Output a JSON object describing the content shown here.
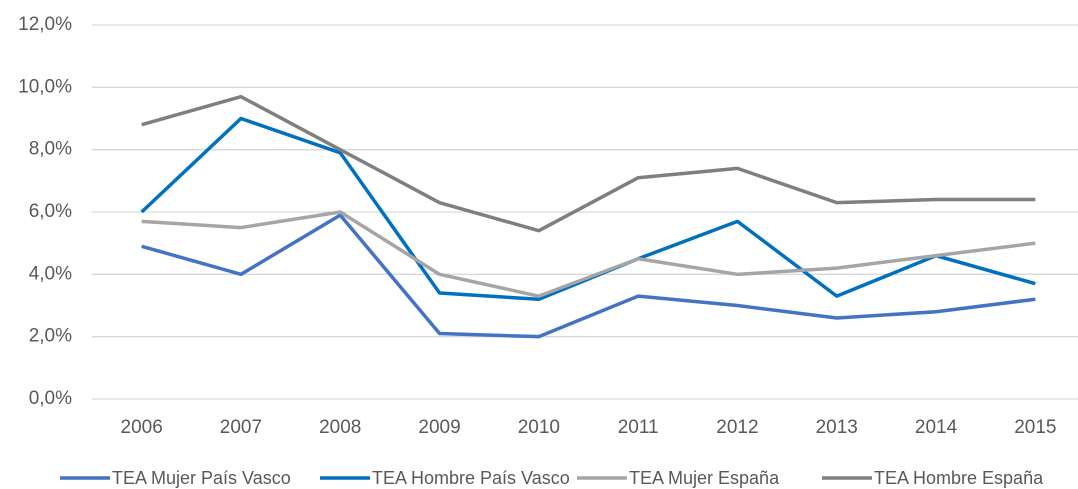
{
  "chart_data": {
    "type": "line",
    "categories": [
      "2006",
      "2007",
      "2008",
      "2009",
      "2010",
      "2011",
      "2012",
      "2013",
      "2014",
      "2015"
    ],
    "series": [
      {
        "name": "TEA Mujer País Vasco",
        "color": "#4472c4",
        "values": [
          4.9,
          4.0,
          5.9,
          2.1,
          2.0,
          3.3,
          3.0,
          2.6,
          2.8,
          3.2
        ]
      },
      {
        "name": "TEA Hombre País Vasco",
        "color": "#0070c0",
        "values": [
          6.0,
          9.0,
          7.9,
          3.4,
          3.2,
          4.5,
          5.7,
          3.3,
          4.6,
          3.7
        ]
      },
      {
        "name": "TEA Mujer España",
        "color": "#a5a5a5",
        "values": [
          5.7,
          5.5,
          6.0,
          4.0,
          3.3,
          4.5,
          4.0,
          4.2,
          4.6,
          5.0
        ]
      },
      {
        "name": "TEA Hombre España",
        "color": "#7f7f7f",
        "values": [
          8.8,
          9.7,
          8.0,
          6.3,
          5.4,
          7.1,
          7.4,
          6.3,
          6.4,
          6.4
        ]
      }
    ],
    "ylim": [
      0,
      12
    ],
    "yticks": [
      {
        "value": 0,
        "label": "0,0%"
      },
      {
        "value": 2,
        "label": "2,0%"
      },
      {
        "value": 4,
        "label": "4,0%"
      },
      {
        "value": 6,
        "label": "6,0%"
      },
      {
        "value": 8,
        "label": "8,0%"
      },
      {
        "value": 10,
        "label": "10,0%"
      },
      {
        "value": 12,
        "label": "12,0%"
      }
    ],
    "grid": true,
    "legend": "bottom"
  }
}
